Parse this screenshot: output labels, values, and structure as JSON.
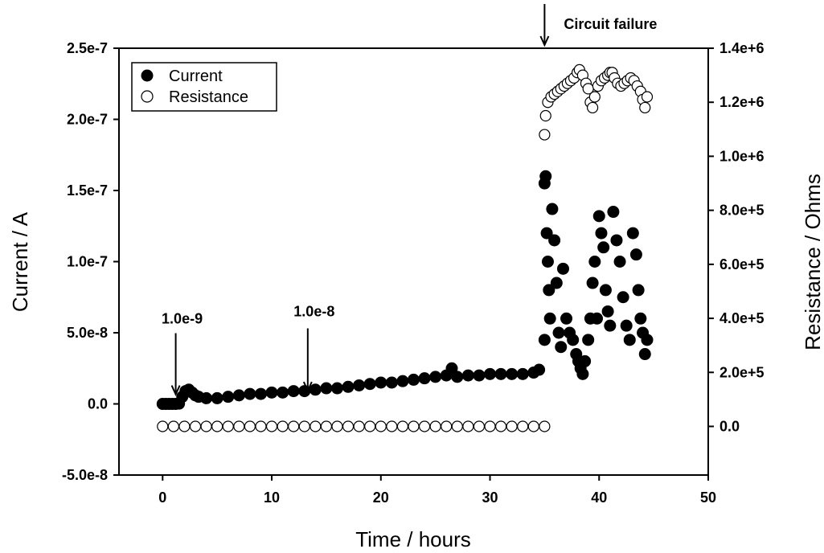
{
  "chart_data": {
    "type": "scatter",
    "xlabel": "Time / hours",
    "ylabel": "Current / A",
    "y2label": "Resistance / Ohms",
    "xlim": [
      -4,
      50
    ],
    "ylim": [
      -5e-08,
      2.5e-07
    ],
    "y2lim": [
      -180000.0,
      1400000.0
    ],
    "x_ticks": [
      0,
      10,
      20,
      30,
      40,
      50
    ],
    "x_tick_labels": [
      "0",
      "10",
      "20",
      "30",
      "40",
      "50"
    ],
    "y_ticks": [
      -5e-08,
      0,
      5e-08,
      1e-07,
      1.5e-07,
      2e-07,
      2.5e-07
    ],
    "y_tick_labels": [
      "-5.0e-8",
      "0.0",
      "5.0e-8",
      "1.0e-7",
      "1.5e-7",
      "2.0e-7",
      "2.5e-7"
    ],
    "y2_ticks": [
      0,
      200000,
      400000,
      600000,
      800000,
      1000000,
      1200000,
      1400000
    ],
    "y2_tick_labels": [
      "0.0",
      "2.0e+5",
      "4.0e+5",
      "6.0e+5",
      "8.0e+5",
      "1.0e+6",
      "1.2e+6",
      "1.4e+6"
    ],
    "grid": false,
    "legend_position": "top-left",
    "series": [
      {
        "name": "Current",
        "axis": "left",
        "marker": "filled-circle",
        "x": [
          0.0,
          0.3,
          0.6,
          0.9,
          1.2,
          1.5,
          1.8,
          2.1,
          2.4,
          2.7,
          3.0,
          3.3,
          4,
          5,
          6,
          7,
          8,
          9,
          10,
          11,
          12,
          13,
          14,
          15,
          16,
          17,
          18,
          19,
          20,
          21,
          22,
          23,
          24,
          25,
          26,
          26.5,
          27,
          28,
          29,
          30,
          31,
          32,
          33,
          34,
          34.5,
          35.0,
          35.0,
          35.1,
          35.2,
          35.3,
          35.4,
          35.5,
          35.7,
          35.9,
          36.1,
          36.3,
          36.5,
          36.7,
          37.0,
          37.3,
          37.6,
          37.9,
          38.1,
          38.3,
          38.5,
          38.7,
          39.0,
          39.2,
          39.4,
          39.6,
          39.8,
          40.0,
          40.2,
          40.4,
          40.6,
          40.8,
          41.0,
          41.3,
          41.6,
          41.9,
          42.2,
          42.5,
          42.8,
          43.1,
          43.4,
          43.6,
          43.8,
          44.0,
          44.2,
          44.4
        ],
        "y": [
          0.0,
          0.0,
          0.0,
          0.0,
          0.0,
          2e-10,
          5e-09,
          9e-09,
          1e-08,
          8e-09,
          6e-09,
          5e-09,
          4e-09,
          4e-09,
          5e-09,
          6e-09,
          7e-09,
          7e-09,
          8e-09,
          8e-09,
          9e-09,
          9e-09,
          1e-08,
          1.1e-08,
          1.1e-08,
          1.2e-08,
          1.3e-08,
          1.4e-08,
          1.5e-08,
          1.5e-08,
          1.6e-08,
          1.7e-08,
          1.8e-08,
          1.9e-08,
          2e-08,
          2.5e-08,
          1.9e-08,
          2e-08,
          2e-08,
          2.1e-08,
          2.1e-08,
          2.1e-08,
          2.1e-08,
          2.2e-08,
          2.4e-08,
          4.5e-08,
          1.55e-07,
          1.6e-07,
          1.2e-07,
          1e-07,
          8e-08,
          6e-08,
          1.37e-07,
          1.15e-07,
          8.5e-08,
          5e-08,
          4e-08,
          9.5e-08,
          6e-08,
          5e-08,
          4.5e-08,
          3.5e-08,
          3e-08,
          2.5e-08,
          2.1e-08,
          3e-08,
          4.5e-08,
          6e-08,
          8.5e-08,
          1e-07,
          6e-08,
          1.32e-07,
          1.2e-07,
          1.1e-07,
          8e-08,
          6.5e-08,
          5.5e-08,
          1.35e-07,
          1.15e-07,
          1e-07,
          7.5e-08,
          5.5e-08,
          4.5e-08,
          1.2e-07,
          1.05e-07,
          8e-08,
          6e-08,
          5e-08,
          3.5e-08,
          4.5e-08
        ]
      },
      {
        "name": "Resistance",
        "axis": "right",
        "marker": "open-circle",
        "x": [
          0,
          1,
          2,
          3,
          4,
          5,
          6,
          7,
          8,
          9,
          10,
          11,
          12,
          13,
          14,
          15,
          16,
          17,
          18,
          19,
          20,
          21,
          22,
          23,
          24,
          25,
          26,
          27,
          28,
          29,
          30,
          31,
          32,
          33,
          34,
          35.0,
          35.0,
          35.1,
          35.3,
          35.6,
          35.9,
          36.2,
          36.5,
          36.8,
          37.1,
          37.4,
          37.7,
          38.0,
          38.2,
          38.5,
          38.8,
          39.0,
          39.2,
          39.4,
          39.6,
          39.9,
          40.2,
          40.5,
          40.8,
          41.0,
          41.2,
          41.4,
          41.7,
          42.0,
          42.3,
          42.6,
          42.9,
          43.2,
          43.5,
          43.8,
          44.0,
          44.2,
          44.4
        ],
        "y": [
          0,
          0,
          0,
          0,
          0,
          0,
          0,
          0,
          0,
          0,
          0,
          0,
          0,
          0,
          0,
          0,
          0,
          0,
          0,
          0,
          0,
          0,
          0,
          0,
          0,
          0,
          0,
          0,
          0,
          0,
          0,
          0,
          0,
          0,
          0,
          0,
          1080000,
          1150000,
          1200000,
          1220000,
          1230000,
          1240000,
          1250000,
          1260000,
          1270000,
          1280000,
          1290000,
          1310000,
          1320000,
          1300000,
          1270000,
          1250000,
          1200000,
          1180000,
          1220000,
          1260000,
          1280000,
          1290000,
          1300000,
          1310000,
          1310000,
          1290000,
          1270000,
          1260000,
          1270000,
          1280000,
          1290000,
          1280000,
          1260000,
          1240000,
          1210000,
          1180000,
          1220000
        ]
      }
    ],
    "annotations": [
      {
        "text": "1.0e-9",
        "x": 1.2,
        "y": 9e-09
      },
      {
        "text": "1.0e-8",
        "x": 13.3,
        "y": 1.1e-08
      },
      {
        "text": "Circuit failure",
        "x": 35.0,
        "y": 2.5e-07
      }
    ]
  }
}
